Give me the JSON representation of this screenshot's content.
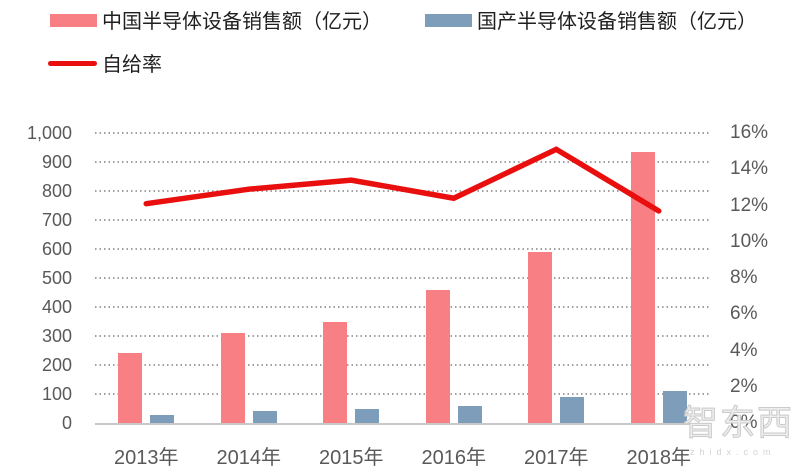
{
  "watermark": {
    "text": "智东西",
    "subtext": "zhidx.com"
  },
  "chart_data": {
    "type": "bar+line combo",
    "title": "",
    "categories": [
      "2013年",
      "2014年",
      "2015年",
      "2016年",
      "2017年",
      "2018年"
    ],
    "series": [
      {
        "name": "中国半导体设备销售额（亿元）",
        "type": "bar",
        "axis": "left",
        "color": "#f87f84",
        "values": [
          240,
          310,
          350,
          460,
          590,
          935
        ]
      },
      {
        "name": "国产半导体设备销售额（亿元）",
        "type": "bar",
        "axis": "left",
        "color": "#7e9dbb",
        "values": [
          29,
          40,
          47,
          57,
          89,
          109
        ]
      },
      {
        "name": "自给率",
        "type": "line",
        "axis": "right",
        "color": "#e90f0f",
        "values_pct": [
          12.1,
          12.9,
          13.4,
          12.4,
          15.1,
          11.7
        ]
      }
    ],
    "left_axis": {
      "min": 0,
      "max": 1000,
      "step": 100,
      "tick_labels": [
        "1,000",
        "900",
        "800",
        "700",
        "600",
        "500",
        "400",
        "300",
        "200",
        "100",
        "0"
      ]
    },
    "right_axis": {
      "min": 0,
      "max": 16,
      "step": 2,
      "tick_labels": [
        "16%",
        "14%",
        "12%",
        "10%",
        "8%",
        "6%",
        "4%",
        "2%",
        "0%"
      ]
    },
    "grid": "horizontal dotted lines, solid baseline",
    "legend_position": "top-left, two rows"
  }
}
